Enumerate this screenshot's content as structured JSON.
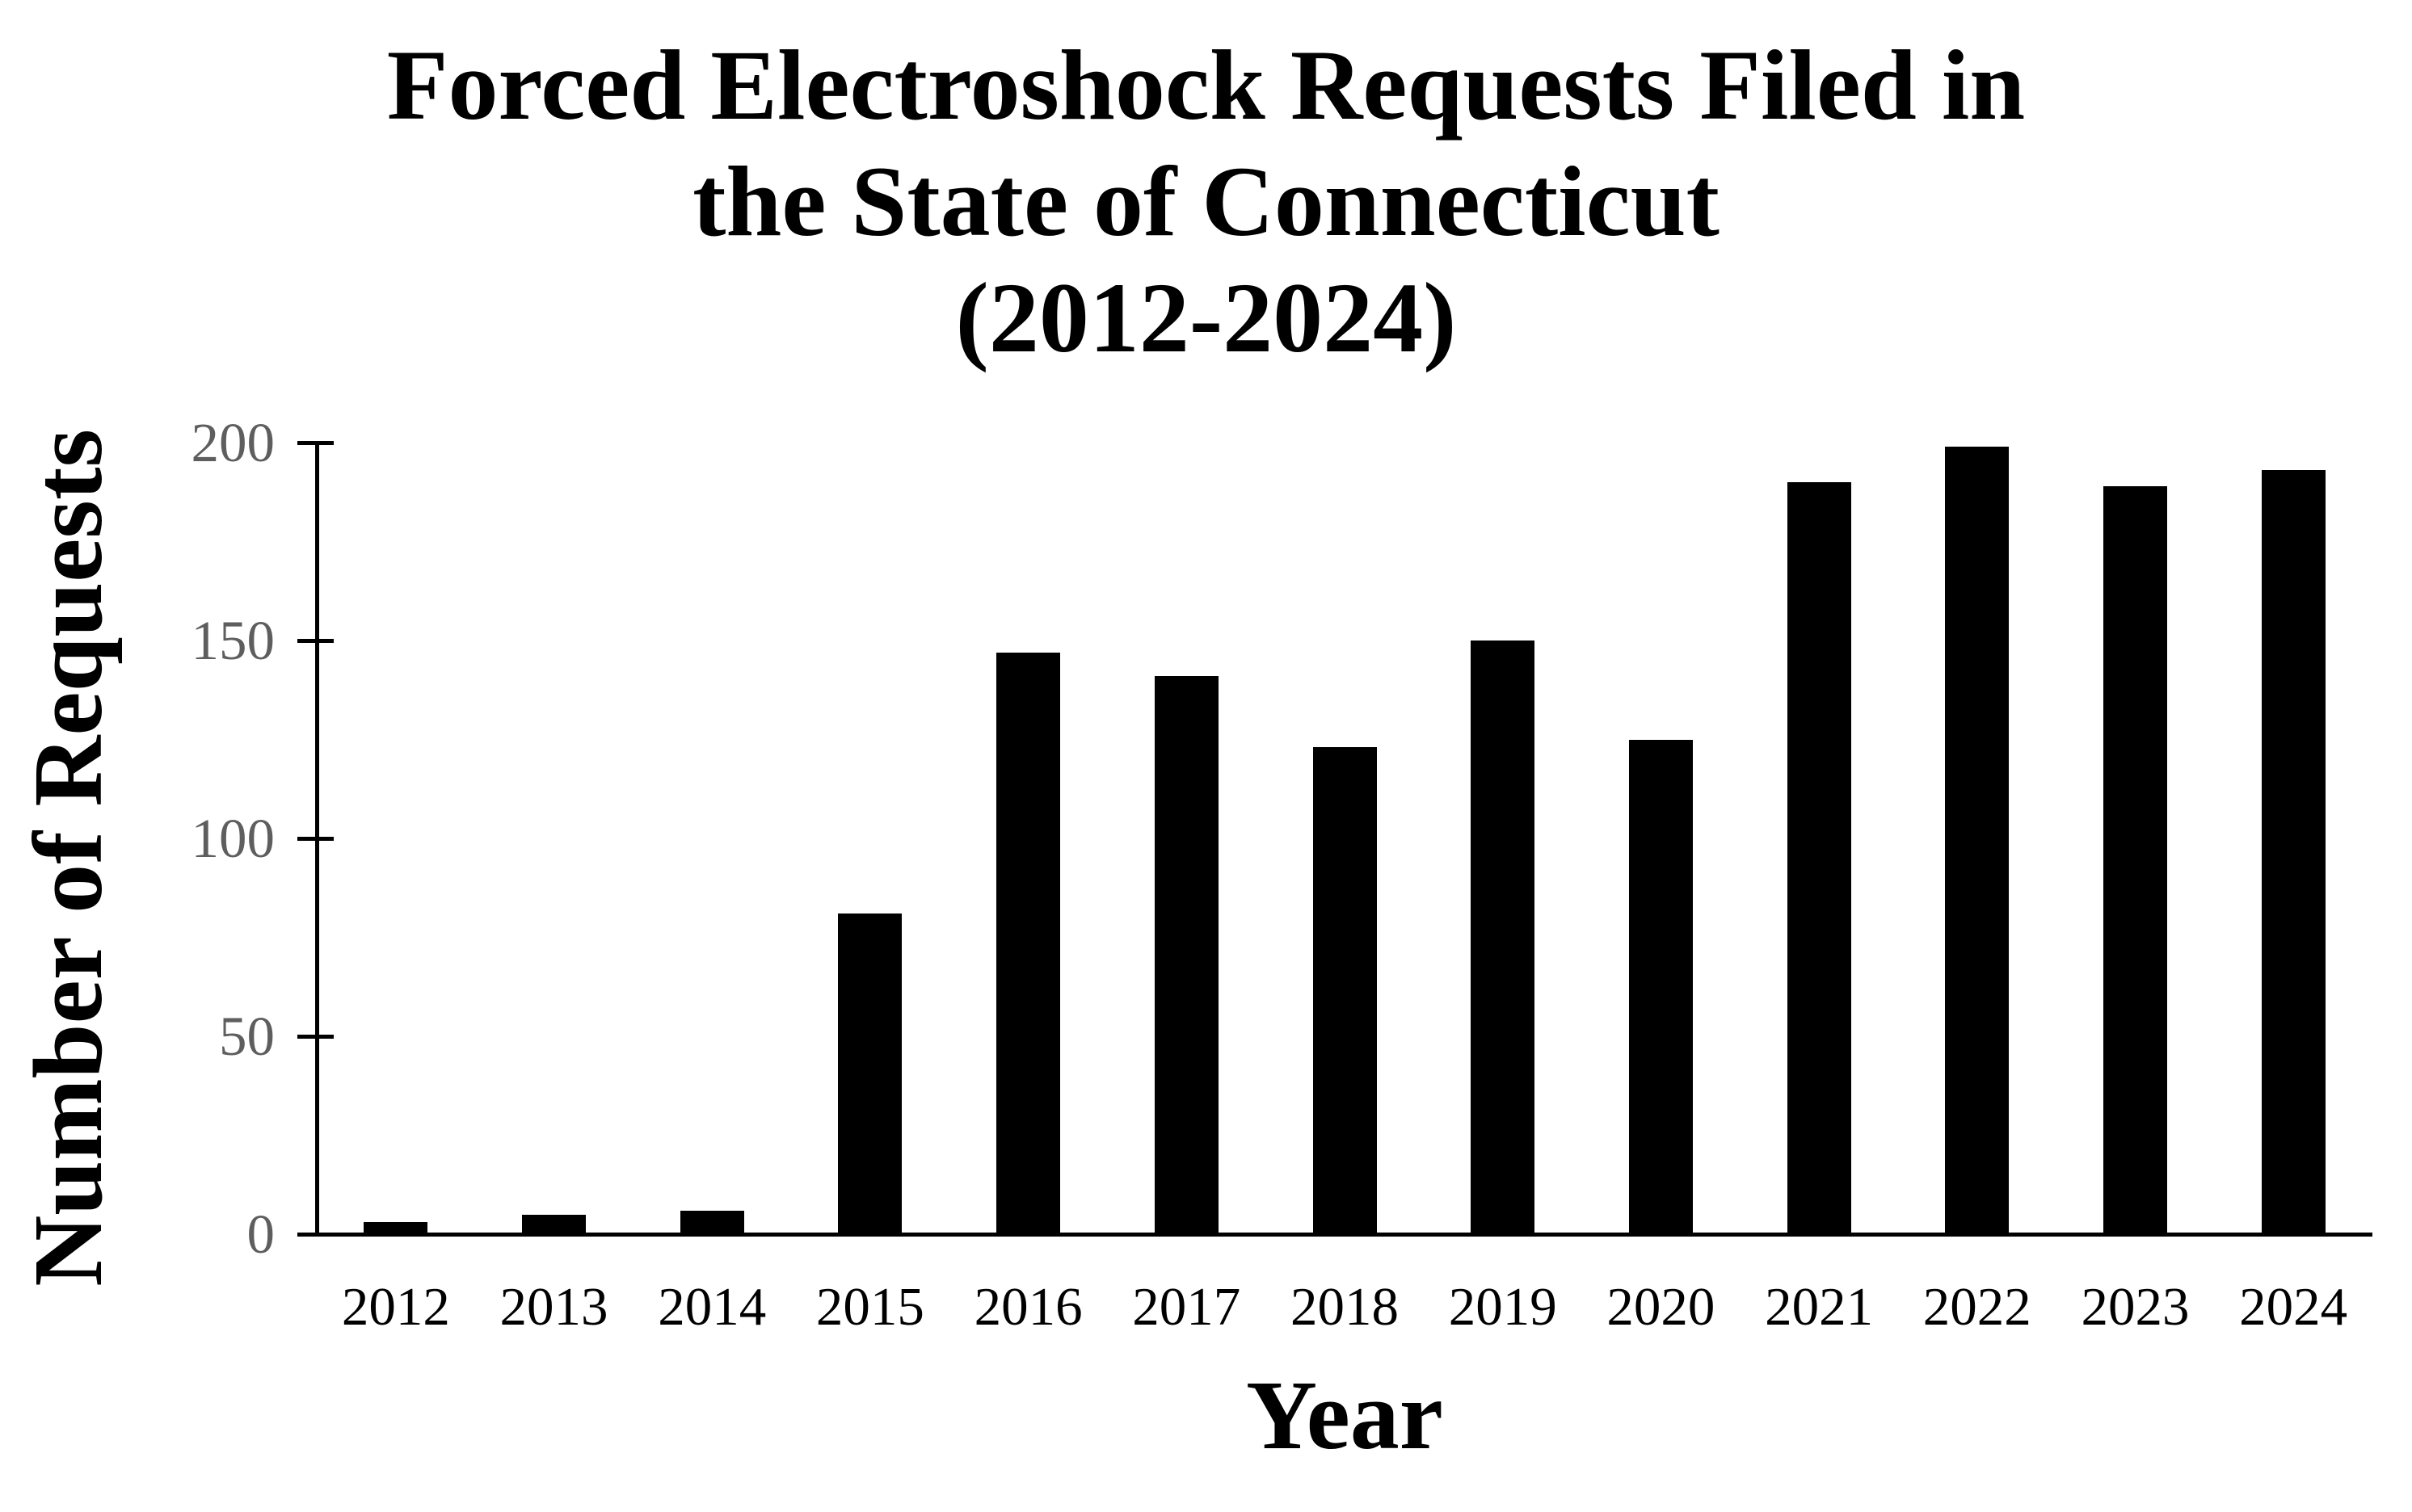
{
  "chart_data": {
    "type": "bar",
    "title": "Forced Electroshock Requests Filed in the State of Connecticut (2012-2024)",
    "title_lines": [
      "Forced Electroshock Requests Filed in",
      "the State of Connecticut",
      "(2012-2024)"
    ],
    "categories": [
      "2012",
      "2013",
      "2014",
      "2015",
      "2016",
      "2017",
      "2018",
      "2019",
      "2020",
      "2021",
      "2022",
      "2023",
      "2024"
    ],
    "values": [
      3,
      5,
      6,
      81,
      147,
      141,
      123,
      150,
      125,
      190,
      199,
      189,
      193
    ],
    "xlabel": "Year",
    "ylabel": "Number of Requests",
    "ylim": [
      0,
      200
    ],
    "yticks": [
      0,
      50,
      100,
      150,
      200
    ],
    "grid": false,
    "legend": false,
    "bar_color": "#000000",
    "axis_color": "#000000",
    "ytick_label_color": "#5e5e5e",
    "xtick_label_color": "#000000",
    "background": "#ffffff"
  }
}
